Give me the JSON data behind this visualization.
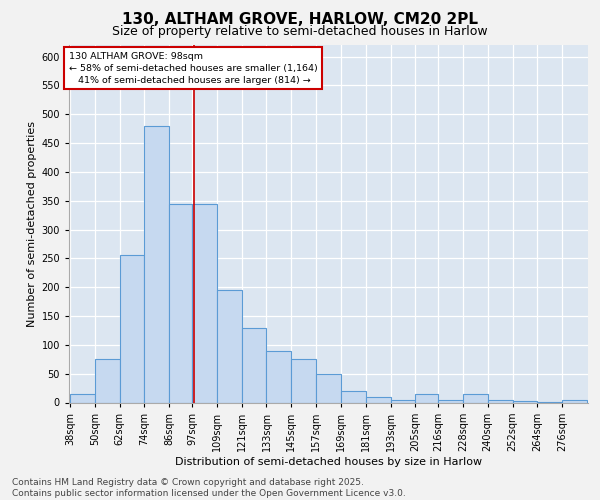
{
  "title_line1": "130, ALTHAM GROVE, HARLOW, CM20 2PL",
  "title_line2": "Size of property relative to semi-detached houses in Harlow",
  "xlabel": "Distribution of semi-detached houses by size in Harlow",
  "ylabel": "Number of semi-detached properties",
  "bin_labels": [
    "38sqm",
    "50sqm",
    "62sqm",
    "74sqm",
    "86sqm",
    "97sqm",
    "109sqm",
    "121sqm",
    "133sqm",
    "145sqm",
    "157sqm",
    "169sqm",
    "181sqm",
    "193sqm",
    "205sqm",
    "216sqm",
    "228sqm",
    "240sqm",
    "252sqm",
    "264sqm",
    "276sqm"
  ],
  "bin_left": [
    38,
    50,
    62,
    74,
    86,
    97,
    109,
    121,
    133,
    145,
    157,
    169,
    181,
    193,
    205,
    216,
    228,
    240,
    252,
    264,
    276
  ],
  "bin_widths": [
    12,
    12,
    12,
    12,
    11,
    12,
    12,
    12,
    12,
    12,
    12,
    12,
    12,
    12,
    11,
    12,
    12,
    12,
    12,
    12,
    12
  ],
  "bar_heights": [
    15,
    75,
    255,
    480,
    345,
    345,
    195,
    130,
    90,
    75,
    50,
    20,
    10,
    5,
    15,
    5,
    15,
    5,
    2,
    1,
    5
  ],
  "bar_color": "#c6d9f0",
  "bar_edge_color": "#5b9bd5",
  "bar_linewidth": 0.8,
  "property_line_x": 98,
  "property_line_color": "#cc0000",
  "annotation_text": "130 ALTHAM GROVE: 98sqm\n← 58% of semi-detached houses are smaller (1,164)\n   41% of semi-detached houses are larger (814) →",
  "annotation_box_edgecolor": "#cc0000",
  "ylim": [
    0,
    620
  ],
  "ytick_step": 50,
  "fig_bg": "#f2f2f2",
  "plot_bg": "#dce6f1",
  "grid_color": "#ffffff",
  "title_fontsize": 11,
  "subtitle_fontsize": 9,
  "axis_label_fontsize": 8,
  "tick_fontsize": 7,
  "annotation_fontsize": 6.8,
  "footer_fontsize": 6.5,
  "footer_text": "Contains HM Land Registry data © Crown copyright and database right 2025.\nContains public sector information licensed under the Open Government Licence v3.0."
}
